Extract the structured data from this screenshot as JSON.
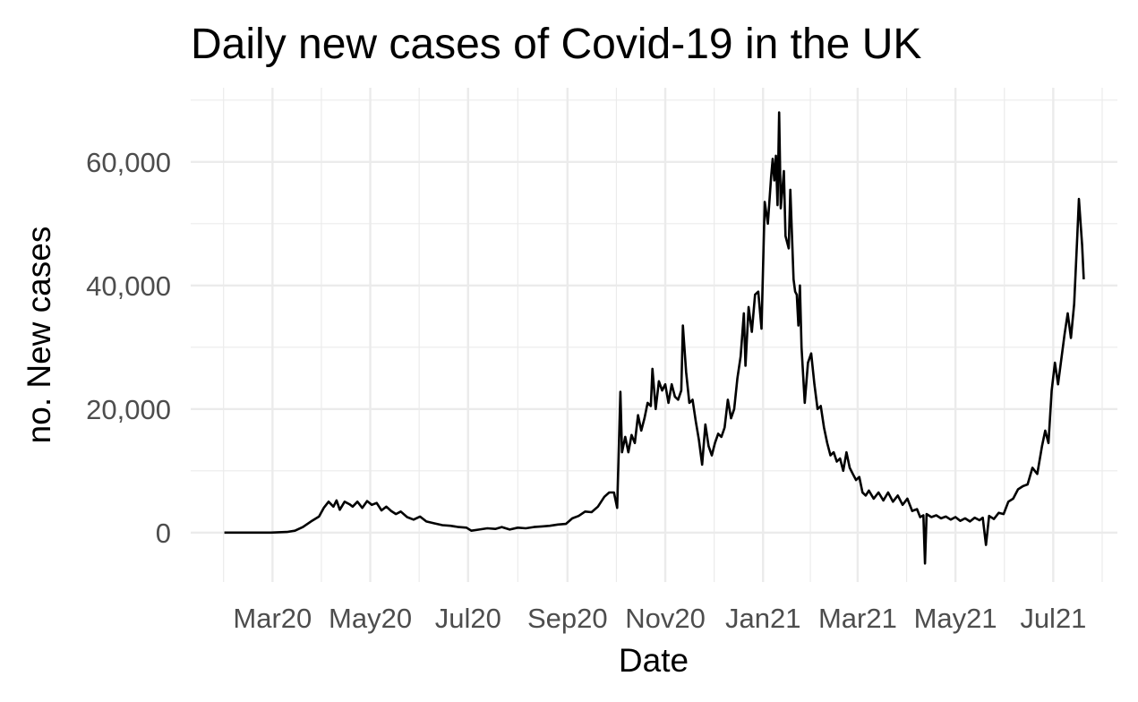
{
  "chart_data": {
    "type": "line",
    "title": "Daily new cases of Covid-19 in the UK",
    "xlabel": "Date",
    "ylabel": "no. New cases",
    "x_tick_labels": [
      "Mar20",
      "May20",
      "Jul20",
      "Sep20",
      "Nov20",
      "Jan21",
      "Mar21",
      "May21",
      "Jul21"
    ],
    "x_tick_dates": [
      "2020-03-01",
      "2020-05-01",
      "2020-07-01",
      "2020-09-01",
      "2020-11-01",
      "2021-01-01",
      "2021-03-01",
      "2021-05-01",
      "2021-07-01"
    ],
    "y_tick_labels": [
      "0",
      "20,000",
      "40,000",
      "60,000"
    ],
    "y_ticks": [
      0,
      20000,
      40000,
      60000
    ],
    "xlim": [
      "2020-01-10",
      "2021-08-10"
    ],
    "ylim": [
      -8000,
      72000
    ],
    "grid": true,
    "series": [
      {
        "color": "#000000",
        "points": [
          [
            "2020-01-31",
            0
          ],
          [
            "2020-02-29",
            0
          ],
          [
            "2020-03-10",
            100
          ],
          [
            "2020-03-15",
            300
          ],
          [
            "2020-03-20",
            900
          ],
          [
            "2020-03-25",
            1800
          ],
          [
            "2020-03-30",
            2600
          ],
          [
            "2020-04-02",
            4000
          ],
          [
            "2020-04-05",
            5000
          ],
          [
            "2020-04-08",
            4200
          ],
          [
            "2020-04-10",
            5200
          ],
          [
            "2020-04-12",
            3700
          ],
          [
            "2020-04-15",
            5000
          ],
          [
            "2020-04-18",
            4600
          ],
          [
            "2020-04-20",
            4200
          ],
          [
            "2020-04-23",
            5000
          ],
          [
            "2020-04-26",
            4000
          ],
          [
            "2020-04-29",
            5100
          ],
          [
            "2020-05-02",
            4500
          ],
          [
            "2020-05-05",
            4800
          ],
          [
            "2020-05-08",
            3600
          ],
          [
            "2020-05-11",
            4200
          ],
          [
            "2020-05-14",
            3500
          ],
          [
            "2020-05-17",
            3000
          ],
          [
            "2020-05-20",
            3400
          ],
          [
            "2020-05-24",
            2500
          ],
          [
            "2020-05-28",
            2100
          ],
          [
            "2020-06-01",
            2600
          ],
          [
            "2020-06-05",
            1800
          ],
          [
            "2020-06-10",
            1500
          ],
          [
            "2020-06-15",
            1200
          ],
          [
            "2020-06-20",
            1100
          ],
          [
            "2020-06-25",
            900
          ],
          [
            "2020-06-30",
            800
          ],
          [
            "2020-07-03",
            300
          ],
          [
            "2020-07-08",
            500
          ],
          [
            "2020-07-13",
            700
          ],
          [
            "2020-07-18",
            600
          ],
          [
            "2020-07-22",
            900
          ],
          [
            "2020-07-27",
            500
          ],
          [
            "2020-08-01",
            800
          ],
          [
            "2020-08-06",
            700
          ],
          [
            "2020-08-11",
            900
          ],
          [
            "2020-08-16",
            1000
          ],
          [
            "2020-08-21",
            1100
          ],
          [
            "2020-08-26",
            1300
          ],
          [
            "2020-08-31",
            1400
          ],
          [
            "2020-09-04",
            2300
          ],
          [
            "2020-09-08",
            2700
          ],
          [
            "2020-09-12",
            3400
          ],
          [
            "2020-09-16",
            3300
          ],
          [
            "2020-09-20",
            4200
          ],
          [
            "2020-09-24",
            5800
          ],
          [
            "2020-09-27",
            6500
          ],
          [
            "2020-09-30",
            6500
          ],
          [
            "2020-10-02",
            4000
          ],
          [
            "2020-10-04",
            22800
          ],
          [
            "2020-10-05",
            13000
          ],
          [
            "2020-10-07",
            15500
          ],
          [
            "2020-10-09",
            13000
          ],
          [
            "2020-10-11",
            15800
          ],
          [
            "2020-10-13",
            14500
          ],
          [
            "2020-10-15",
            19000
          ],
          [
            "2020-10-17",
            16500
          ],
          [
            "2020-10-19",
            18500
          ],
          [
            "2020-10-21",
            21000
          ],
          [
            "2020-10-23",
            20500
          ],
          [
            "2020-10-24",
            26500
          ],
          [
            "2020-10-26",
            20000
          ],
          [
            "2020-10-28",
            24500
          ],
          [
            "2020-10-30",
            23000
          ],
          [
            "2020-11-01",
            24000
          ],
          [
            "2020-11-03",
            21000
          ],
          [
            "2020-11-05",
            24000
          ],
          [
            "2020-11-07",
            22000
          ],
          [
            "2020-11-09",
            21500
          ],
          [
            "2020-11-11",
            23000
          ],
          [
            "2020-11-12",
            33500
          ],
          [
            "2020-11-14",
            26000
          ],
          [
            "2020-11-16",
            21000
          ],
          [
            "2020-11-18",
            21500
          ],
          [
            "2020-11-20",
            18000
          ],
          [
            "2020-11-22",
            15000
          ],
          [
            "2020-11-24",
            11000
          ],
          [
            "2020-11-26",
            17500
          ],
          [
            "2020-11-28",
            14000
          ],
          [
            "2020-11-30",
            12500
          ],
          [
            "2020-12-02",
            14500
          ],
          [
            "2020-12-04",
            16000
          ],
          [
            "2020-12-06",
            15500
          ],
          [
            "2020-12-08",
            17000
          ],
          [
            "2020-12-10",
            21500
          ],
          [
            "2020-12-12",
            18500
          ],
          [
            "2020-12-14",
            20000
          ],
          [
            "2020-12-16",
            25000
          ],
          [
            "2020-12-18",
            28500
          ],
          [
            "2020-12-20",
            35500
          ],
          [
            "2020-12-21",
            27000
          ],
          [
            "2020-12-23",
            36500
          ],
          [
            "2020-12-25",
            32500
          ],
          [
            "2020-12-27",
            38500
          ],
          [
            "2020-12-29",
            39000
          ],
          [
            "2020-12-31",
            33000
          ],
          [
            "2021-01-02",
            53500
          ],
          [
            "2021-01-04",
            50000
          ],
          [
            "2021-01-06",
            57500
          ],
          [
            "2021-01-07",
            60500
          ],
          [
            "2021-01-08",
            57000
          ],
          [
            "2021-01-09",
            61000
          ],
          [
            "2021-01-10",
            53000
          ],
          [
            "2021-01-11",
            68000
          ],
          [
            "2021-01-12",
            52500
          ],
          [
            "2021-01-14",
            58500
          ],
          [
            "2021-01-15",
            48000
          ],
          [
            "2021-01-17",
            46000
          ],
          [
            "2021-01-18",
            55500
          ],
          [
            "2021-01-20",
            41000
          ],
          [
            "2021-01-21",
            39000
          ],
          [
            "2021-01-22",
            38500
          ],
          [
            "2021-01-23",
            33500
          ],
          [
            "2021-01-24",
            40000
          ],
          [
            "2021-01-25",
            30000
          ],
          [
            "2021-01-27",
            21000
          ],
          [
            "2021-01-29",
            27500
          ],
          [
            "2021-01-31",
            29000
          ],
          [
            "2021-02-02",
            24000
          ],
          [
            "2021-02-04",
            20000
          ],
          [
            "2021-02-06",
            20500
          ],
          [
            "2021-02-08",
            17000
          ],
          [
            "2021-02-10",
            14500
          ],
          [
            "2021-02-12",
            12500
          ],
          [
            "2021-02-14",
            13000
          ],
          [
            "2021-02-16",
            11500
          ],
          [
            "2021-02-18",
            12000
          ],
          [
            "2021-02-20",
            10000
          ],
          [
            "2021-02-22",
            13000
          ],
          [
            "2021-02-24",
            10500
          ],
          [
            "2021-02-26",
            9500
          ],
          [
            "2021-02-28",
            8500
          ],
          [
            "2021-03-02",
            9000
          ],
          [
            "2021-03-04",
            6500
          ],
          [
            "2021-03-06",
            6000
          ],
          [
            "2021-03-08",
            6800
          ],
          [
            "2021-03-11",
            5500
          ],
          [
            "2021-03-14",
            6500
          ],
          [
            "2021-03-17",
            5200
          ],
          [
            "2021-03-20",
            6500
          ],
          [
            "2021-03-23",
            5000
          ],
          [
            "2021-03-26",
            6000
          ],
          [
            "2021-03-29",
            4500
          ],
          [
            "2021-04-01",
            5500
          ],
          [
            "2021-04-04",
            3500
          ],
          [
            "2021-04-07",
            3800
          ],
          [
            "2021-04-09",
            2500
          ],
          [
            "2021-04-11",
            2800
          ],
          [
            "2021-04-12",
            -5000
          ],
          [
            "2021-04-13",
            3000
          ],
          [
            "2021-04-16",
            2500
          ],
          [
            "2021-04-19",
            2800
          ],
          [
            "2021-04-22",
            2300
          ],
          [
            "2021-04-25",
            2600
          ],
          [
            "2021-04-28",
            2100
          ],
          [
            "2021-05-01",
            2500
          ],
          [
            "2021-05-04",
            1900
          ],
          [
            "2021-05-07",
            2300
          ],
          [
            "2021-05-10",
            1800
          ],
          [
            "2021-05-13",
            2400
          ],
          [
            "2021-05-16",
            2000
          ],
          [
            "2021-05-18",
            2400
          ],
          [
            "2021-05-20",
            -2000
          ],
          [
            "2021-05-22",
            2700
          ],
          [
            "2021-05-25",
            2200
          ],
          [
            "2021-05-28",
            3200
          ],
          [
            "2021-05-31",
            3000
          ],
          [
            "2021-06-03",
            5000
          ],
          [
            "2021-06-06",
            5500
          ],
          [
            "2021-06-09",
            7000
          ],
          [
            "2021-06-12",
            7500
          ],
          [
            "2021-06-15",
            7800
          ],
          [
            "2021-06-18",
            10500
          ],
          [
            "2021-06-21",
            9500
          ],
          [
            "2021-06-24",
            14000
          ],
          [
            "2021-06-26",
            16500
          ],
          [
            "2021-06-28",
            14500
          ],
          [
            "2021-06-30",
            23000
          ],
          [
            "2021-07-02",
            27500
          ],
          [
            "2021-07-04",
            24000
          ],
          [
            "2021-07-06",
            28000
          ],
          [
            "2021-07-08",
            32000
          ],
          [
            "2021-07-10",
            35500
          ],
          [
            "2021-07-12",
            31500
          ],
          [
            "2021-07-14",
            37000
          ],
          [
            "2021-07-16",
            48000
          ],
          [
            "2021-07-17",
            54000
          ],
          [
            "2021-07-19",
            46500
          ],
          [
            "2021-07-20",
            41000
          ]
        ]
      }
    ]
  }
}
